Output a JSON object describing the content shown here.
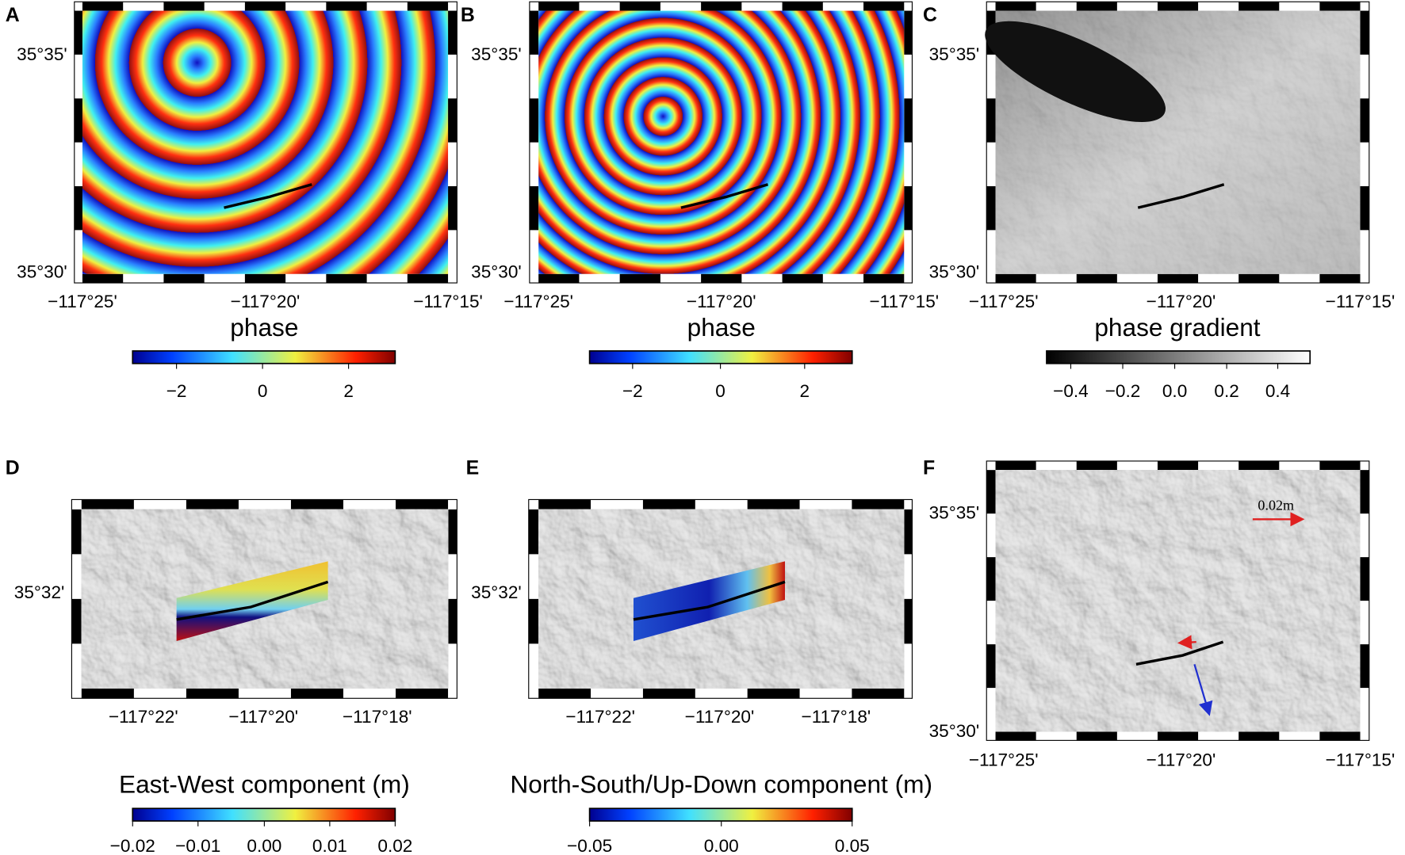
{
  "panels": [
    {
      "label": "A",
      "lat_labels": [
        "35°35'",
        "35°30'"
      ],
      "lon_labels": [
        "−117°25'",
        "−117°20'",
        "−117°15'"
      ],
      "colorbar": {
        "title": "phase",
        "ticks": [
          "−2",
          "0",
          "2"
        ]
      }
    },
    {
      "label": "B",
      "lat_labels": [
        "35°35'",
        "35°30'"
      ],
      "lon_labels": [
        "−117°25'",
        "−117°20'",
        "−117°15'"
      ],
      "colorbar": {
        "title": "phase",
        "ticks": [
          "−2",
          "0",
          "2"
        ]
      }
    },
    {
      "label": "C",
      "lat_labels": [
        "35°35'",
        "35°30'"
      ],
      "lon_labels": [
        "−117°25'",
        "−117°20'",
        "−117°15'"
      ],
      "colorbar": {
        "title": "phase gradient",
        "ticks": [
          "−0.4",
          "−0.2",
          "0.0",
          "0.2",
          "0.4"
        ]
      }
    },
    {
      "label": "D",
      "lat_labels": [
        "35°32'"
      ],
      "lon_labels": [
        "−117°22'",
        "−117°20'",
        "−117°18'"
      ],
      "colorbar": {
        "title": "East-West component (m)",
        "ticks": [
          "−0.02",
          "−0.01",
          "0.00",
          "0.01",
          "0.02"
        ]
      }
    },
    {
      "label": "E",
      "lat_labels": [
        "35°32'"
      ],
      "lon_labels": [
        "−117°22'",
        "−117°20'",
        "−117°18'"
      ],
      "colorbar": {
        "title": "North-South/Up-Down component (m)",
        "ticks": [
          "−0.05",
          "0.00",
          "0.05"
        ]
      }
    },
    {
      "label": "F",
      "lat_labels": [
        "35°35'",
        "35°30'"
      ],
      "lon_labels": [
        "−117°25'",
        "−117°20'",
        "−117°15'"
      ],
      "annotation": "0.02m"
    }
  ]
}
